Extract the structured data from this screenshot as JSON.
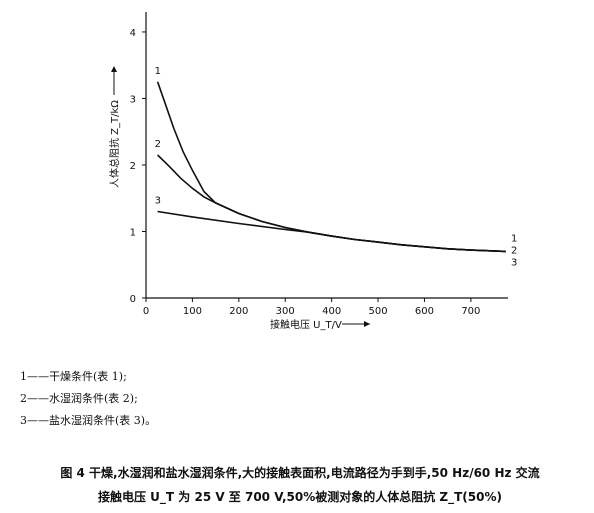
{
  "chart_data": {
    "type": "line",
    "xlabel": "接触电压 U_T/V",
    "ylabel": "人体总阻抗 Z_T/kΩ",
    "xlim": [
      0,
      780
    ],
    "ylim": [
      0,
      4.3
    ],
    "x_ticks": [
      "0",
      "100",
      "200",
      "300",
      "400",
      "500",
      "600",
      "700"
    ],
    "y_ticks": [
      "0",
      "1",
      "2",
      "3",
      "4"
    ],
    "series": [
      {
        "name": "1",
        "points": [
          [
            25,
            3.25
          ],
          [
            40,
            2.95
          ],
          [
            60,
            2.55
          ],
          [
            80,
            2.2
          ],
          [
            100,
            1.92
          ],
          [
            125,
            1.6
          ],
          [
            150,
            1.43
          ],
          [
            200,
            1.27
          ],
          [
            250,
            1.15
          ],
          [
            300,
            1.06
          ],
          [
            350,
            0.99
          ],
          [
            400,
            0.93
          ],
          [
            450,
            0.88
          ],
          [
            500,
            0.84
          ],
          [
            550,
            0.8
          ],
          [
            600,
            0.77
          ],
          [
            650,
            0.74
          ],
          [
            700,
            0.72
          ],
          [
            775,
            0.7
          ]
        ]
      },
      {
        "name": "2",
        "points": [
          [
            25,
            2.15
          ],
          [
            50,
            1.98
          ],
          [
            75,
            1.8
          ],
          [
            100,
            1.65
          ],
          [
            125,
            1.52
          ],
          [
            150,
            1.43
          ],
          [
            200,
            1.27
          ],
          [
            250,
            1.15
          ],
          [
            300,
            1.06
          ],
          [
            350,
            0.99
          ],
          [
            400,
            0.93
          ],
          [
            450,
            0.88
          ],
          [
            500,
            0.84
          ],
          [
            550,
            0.8
          ],
          [
            600,
            0.77
          ],
          [
            650,
            0.74
          ],
          [
            700,
            0.72
          ],
          [
            775,
            0.7
          ]
        ]
      },
      {
        "name": "3",
        "points": [
          [
            25,
            1.3
          ],
          [
            100,
            1.22
          ],
          [
            200,
            1.12
          ],
          [
            300,
            1.03
          ],
          [
            350,
            0.99
          ],
          [
            400,
            0.93
          ],
          [
            450,
            0.88
          ],
          [
            500,
            0.84
          ],
          [
            550,
            0.8
          ],
          [
            600,
            0.77
          ],
          [
            650,
            0.74
          ],
          [
            700,
            0.72
          ],
          [
            775,
            0.7
          ]
        ]
      }
    ],
    "right_end_labels": [
      "1",
      "2",
      "3"
    ]
  },
  "legend": [
    "1——干燥条件(表 1);",
    "2——水湿润条件(表 2);",
    "3——盐水湿润条件(表 3)。"
  ],
  "caption": {
    "line1": "图 4   干燥,水湿润和盐水湿润条件,大的接触表面积,电流路径为手到手,50 Hz/60 Hz 交流",
    "line2": "接触电压 U_T 为 25 V 至 700 V,50%被测对象的人体总阻抗 Z_T(50%)"
  }
}
